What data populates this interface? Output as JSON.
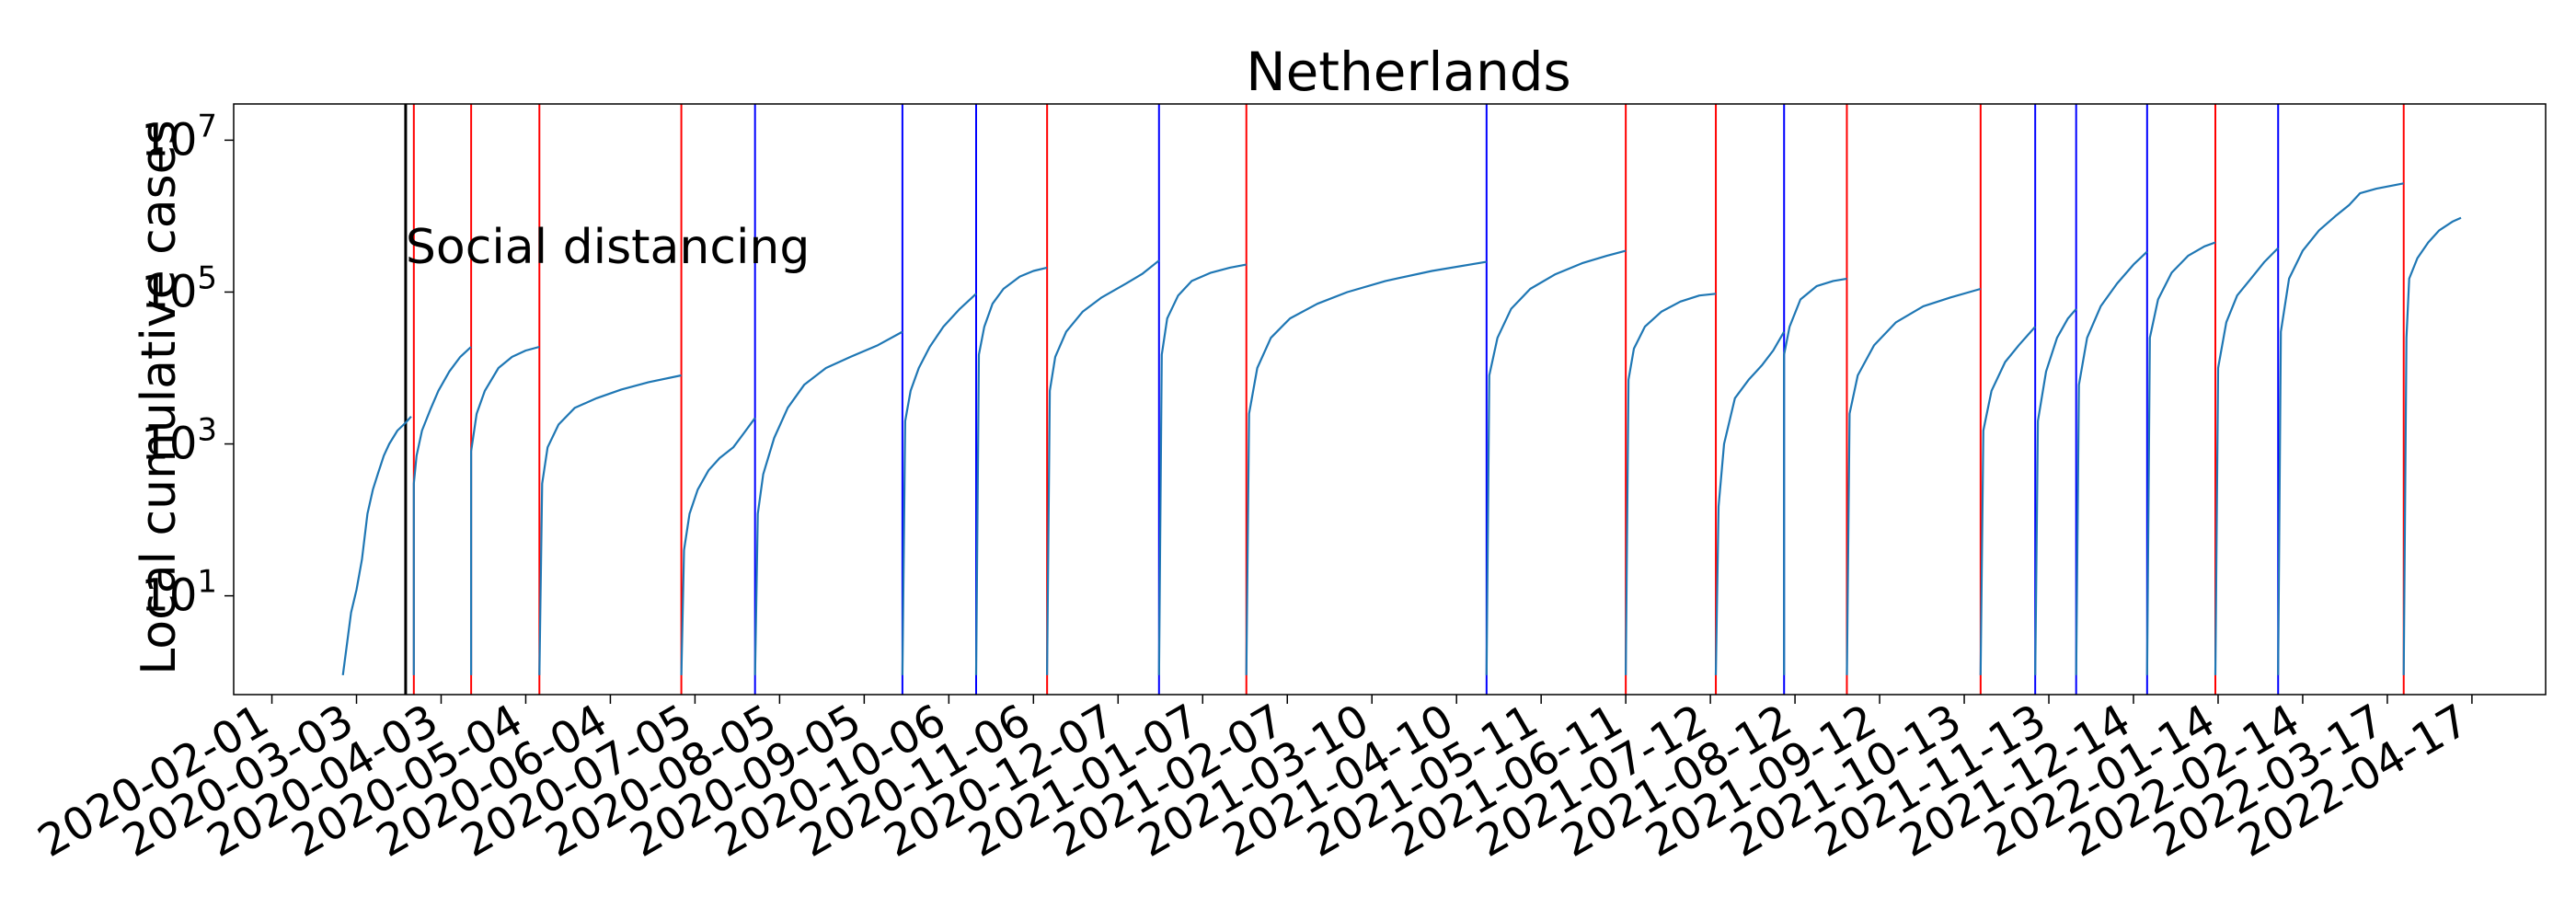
{
  "chart_data": {
    "type": "line",
    "title": "Netherlands",
    "ylabel": "Local cumulative cases",
    "xlabel": "",
    "yscale": "log",
    "ylim": [
      0.5,
      30000000
    ],
    "xlim": [
      "2020-01-18",
      "2022-05-14"
    ],
    "grid": false,
    "y_ticks": [
      {
        "value": 10,
        "base": "10",
        "exp": "1"
      },
      {
        "value": 1000,
        "base": "10",
        "exp": "3"
      },
      {
        "value": 100000,
        "base": "10",
        "exp": "5"
      },
      {
        "value": 10000000,
        "base": "10",
        "exp": "7"
      }
    ],
    "x_ticks": [
      "2020-02-01",
      "2020-03-03",
      "2020-04-03",
      "2020-05-04",
      "2020-06-04",
      "2020-07-05",
      "2020-08-05",
      "2020-09-05",
      "2020-10-06",
      "2020-11-06",
      "2020-12-07",
      "2021-01-07",
      "2021-02-07",
      "2021-03-10",
      "2021-04-10",
      "2021-05-11",
      "2021-06-11",
      "2021-07-12",
      "2021-08-12",
      "2021-09-12",
      "2021-10-13",
      "2021-11-13",
      "2021-12-14",
      "2022-01-14",
      "2022-02-14",
      "2022-03-17",
      "2022-04-17"
    ],
    "annotations": [
      {
        "text": "Social distancing",
        "date": "2020-03-21",
        "value": 400000
      }
    ],
    "marker_lines": [
      {
        "date": "2020-03-21",
        "color": "#000000"
      },
      {
        "date": "2020-03-24",
        "color": "#ff0000"
      },
      {
        "date": "2020-04-14",
        "color": "#ff0000"
      },
      {
        "date": "2020-05-09",
        "color": "#ff0000"
      },
      {
        "date": "2020-06-30",
        "color": "#ff0000"
      },
      {
        "date": "2020-07-27",
        "color": "#0000ff"
      },
      {
        "date": "2020-09-19",
        "color": "#0000ff"
      },
      {
        "date": "2020-10-16",
        "color": "#0000ff"
      },
      {
        "date": "2020-11-11",
        "color": "#ff0000"
      },
      {
        "date": "2020-12-22",
        "color": "#0000ff"
      },
      {
        "date": "2021-01-23",
        "color": "#ff0000"
      },
      {
        "date": "2021-04-21",
        "color": "#0000ff"
      },
      {
        "date": "2021-06-11",
        "color": "#ff0000"
      },
      {
        "date": "2021-07-14",
        "color": "#ff0000"
      },
      {
        "date": "2021-08-08",
        "color": "#0000ff"
      },
      {
        "date": "2021-08-31",
        "color": "#ff0000"
      },
      {
        "date": "2021-10-19",
        "color": "#ff0000"
      },
      {
        "date": "2021-11-08",
        "color": "#0000ff"
      },
      {
        "date": "2021-11-23",
        "color": "#0000ff"
      },
      {
        "date": "2021-12-19",
        "color": "#0000ff"
      },
      {
        "date": "2022-01-13",
        "color": "#ff0000"
      },
      {
        "date": "2022-02-05",
        "color": "#0000ff"
      },
      {
        "date": "2022-03-23",
        "color": "#ff0000"
      }
    ],
    "series": [
      {
        "color": "#1f77b4",
        "segments": [
          [
            [
              "2020-02-27",
              0.9
            ],
            [
              "2020-03-01",
              6
            ],
            [
              "2020-03-03",
              12
            ],
            [
              "2020-03-05",
              30
            ],
            [
              "2020-03-07",
              120
            ],
            [
              "2020-03-09",
              250
            ],
            [
              "2020-03-11",
              420
            ],
            [
              "2020-03-13",
              700
            ],
            [
              "2020-03-15",
              1000
            ],
            [
              "2020-03-18",
              1500
            ],
            [
              "2020-03-21",
              1900
            ],
            [
              "2020-03-23",
              2300
            ]
          ],
          [
            [
              "2020-03-24",
              0.9
            ],
            [
              "2020-03-24",
              300
            ],
            [
              "2020-03-25",
              700
            ],
            [
              "2020-03-27",
              1500
            ],
            [
              "2020-03-30",
              2800
            ],
            [
              "2020-04-02",
              5000
            ],
            [
              "2020-04-06",
              9000
            ],
            [
              "2020-04-10",
              14000
            ],
            [
              "2020-04-14",
              19000
            ]
          ],
          [
            [
              "2020-04-14",
              0.9
            ],
            [
              "2020-04-14",
              800
            ],
            [
              "2020-04-16",
              2500
            ],
            [
              "2020-04-19",
              5000
            ],
            [
              "2020-04-24",
              10000
            ],
            [
              "2020-04-29",
              14000
            ],
            [
              "2020-05-04",
              17000
            ],
            [
              "2020-05-09",
              19000
            ]
          ],
          [
            [
              "2020-05-09",
              0.9
            ],
            [
              "2020-05-10",
              300
            ],
            [
              "2020-05-12",
              900
            ],
            [
              "2020-05-16",
              1800
            ],
            [
              "2020-05-22",
              3000
            ],
            [
              "2020-05-30",
              4000
            ],
            [
              "2020-06-08",
              5200
            ],
            [
              "2020-06-18",
              6500
            ],
            [
              "2020-06-30",
              8000
            ]
          ],
          [
            [
              "2020-06-30",
              0.9
            ],
            [
              "2020-07-01",
              40
            ],
            [
              "2020-07-03",
              120
            ],
            [
              "2020-07-06",
              250
            ],
            [
              "2020-07-10",
              450
            ],
            [
              "2020-07-14",
              650
            ],
            [
              "2020-07-19",
              900
            ],
            [
              "2020-07-23",
              1400
            ],
            [
              "2020-07-27",
              2200
            ]
          ],
          [
            [
              "2020-07-27",
              0.9
            ],
            [
              "2020-07-28",
              120
            ],
            [
              "2020-07-30",
              400
            ],
            [
              "2020-08-03",
              1200
            ],
            [
              "2020-08-08",
              3000
            ],
            [
              "2020-08-14",
              6000
            ],
            [
              "2020-08-22",
              10000
            ],
            [
              "2020-08-31",
              14000
            ],
            [
              "2020-09-10",
              20000
            ],
            [
              "2020-09-19",
              30000
            ]
          ],
          [
            [
              "2020-09-19",
              0.9
            ],
            [
              "2020-09-20",
              2000
            ],
            [
              "2020-09-22",
              5000
            ],
            [
              "2020-09-25",
              10000
            ],
            [
              "2020-09-29",
              19000
            ],
            [
              "2020-10-04",
              35000
            ],
            [
              "2020-10-10",
              60000
            ],
            [
              "2020-10-16",
              95000
            ]
          ],
          [
            [
              "2020-10-16",
              0.9
            ],
            [
              "2020-10-17",
              15000
            ],
            [
              "2020-10-19",
              35000
            ],
            [
              "2020-10-22",
              70000
            ],
            [
              "2020-10-26",
              110000
            ],
            [
              "2020-11-01",
              160000
            ],
            [
              "2020-11-06",
              190000
            ],
            [
              "2020-11-11",
              210000
            ]
          ],
          [
            [
              "2020-11-11",
              0.9
            ],
            [
              "2020-11-12",
              5000
            ],
            [
              "2020-11-14",
              14000
            ],
            [
              "2020-11-18",
              30000
            ],
            [
              "2020-11-24",
              55000
            ],
            [
              "2020-12-01",
              85000
            ],
            [
              "2020-12-10",
              130000
            ],
            [
              "2020-12-16",
              175000
            ],
            [
              "2020-12-22",
              260000
            ]
          ],
          [
            [
              "2020-12-22",
              0.9
            ],
            [
              "2020-12-23",
              15000
            ],
            [
              "2020-12-25",
              45000
            ],
            [
              "2020-12-29",
              90000
            ],
            [
              "2021-01-03",
              140000
            ],
            [
              "2021-01-10",
              180000
            ],
            [
              "2021-01-17",
              210000
            ],
            [
              "2021-01-23",
              230000
            ]
          ],
          [
            [
              "2021-01-23",
              0.9
            ],
            [
              "2021-01-24",
              2500
            ],
            [
              "2021-01-27",
              10000
            ],
            [
              "2021-02-01",
              25000
            ],
            [
              "2021-02-08",
              45000
            ],
            [
              "2021-02-18",
              70000
            ],
            [
              "2021-03-01",
              100000
            ],
            [
              "2021-03-15",
              140000
            ],
            [
              "2021-04-01",
              190000
            ],
            [
              "2021-04-21",
              250000
            ]
          ],
          [
            [
              "2021-04-21",
              0.9
            ],
            [
              "2021-04-22",
              8000
            ],
            [
              "2021-04-25",
              25000
            ],
            [
              "2021-04-30",
              60000
            ],
            [
              "2021-05-07",
              110000
            ],
            [
              "2021-05-16",
              170000
            ],
            [
              "2021-05-26",
              240000
            ],
            [
              "2021-06-04",
              300000
            ],
            [
              "2021-06-11",
              350000
            ]
          ],
          [
            [
              "2021-06-11",
              0.9
            ],
            [
              "2021-06-12",
              7000
            ],
            [
              "2021-06-14",
              18000
            ],
            [
              "2021-06-18",
              35000
            ],
            [
              "2021-06-24",
              55000
            ],
            [
              "2021-07-01",
              75000
            ],
            [
              "2021-07-08",
              90000
            ],
            [
              "2021-07-14",
              95000
            ]
          ],
          [
            [
              "2021-07-14",
              0.9
            ],
            [
              "2021-07-15",
              150
            ],
            [
              "2021-07-17",
              1000
            ],
            [
              "2021-07-21",
              4000
            ],
            [
              "2021-07-26",
              7000
            ],
            [
              "2021-07-31",
              11000
            ],
            [
              "2021-08-04",
              17000
            ],
            [
              "2021-08-08",
              30000
            ]
          ],
          [
            [
              "2021-08-08",
              0.9
            ],
            [
              "2021-08-08",
              15000
            ],
            [
              "2021-08-10",
              35000
            ],
            [
              "2021-08-14",
              80000
            ],
            [
              "2021-08-20",
              120000
            ],
            [
              "2021-08-26",
              140000
            ],
            [
              "2021-08-31",
              150000
            ]
          ],
          [
            [
              "2021-08-31",
              0.9
            ],
            [
              "2021-09-01",
              2500
            ],
            [
              "2021-09-04",
              8000
            ],
            [
              "2021-09-10",
              20000
            ],
            [
              "2021-09-18",
              40000
            ],
            [
              "2021-09-28",
              65000
            ],
            [
              "2021-10-08",
              85000
            ],
            [
              "2021-10-19",
              110000
            ]
          ],
          [
            [
              "2021-10-19",
              0.9
            ],
            [
              "2021-10-20",
              1500
            ],
            [
              "2021-10-23",
              5000
            ],
            [
              "2021-10-28",
              12000
            ],
            [
              "2021-11-02",
              20000
            ],
            [
              "2021-11-08",
              35000
            ]
          ],
          [
            [
              "2021-11-08",
              0.9
            ],
            [
              "2021-11-09",
              2000
            ],
            [
              "2021-11-12",
              9000
            ],
            [
              "2021-11-16",
              25000
            ],
            [
              "2021-11-20",
              45000
            ],
            [
              "2021-11-23",
              60000
            ]
          ],
          [
            [
              "2021-11-23",
              0.9
            ],
            [
              "2021-11-24",
              6000
            ],
            [
              "2021-11-27",
              25000
            ],
            [
              "2021-12-02",
              65000
            ],
            [
              "2021-12-08",
              130000
            ],
            [
              "2021-12-14",
              230000
            ],
            [
              "2021-12-19",
              340000
            ]
          ],
          [
            [
              "2021-12-19",
              0.9
            ],
            [
              "2021-12-20",
              25000
            ],
            [
              "2021-12-23",
              80000
            ],
            [
              "2021-12-28",
              180000
            ],
            [
              "2022-01-03",
              300000
            ],
            [
              "2022-01-09",
              400000
            ],
            [
              "2022-01-13",
              450000
            ]
          ],
          [
            [
              "2022-01-13",
              0.9
            ],
            [
              "2022-01-14",
              10000
            ],
            [
              "2022-01-17",
              40000
            ],
            [
              "2022-01-21",
              90000
            ],
            [
              "2022-01-26",
              150000
            ],
            [
              "2022-01-31",
              250000
            ],
            [
              "2022-02-05",
              380000
            ]
          ],
          [
            [
              "2022-02-05",
              0.9
            ],
            [
              "2022-02-06",
              30000
            ],
            [
              "2022-02-09",
              150000
            ],
            [
              "2022-02-14",
              350000
            ],
            [
              "2022-02-20",
              650000
            ],
            [
              "2022-02-26",
              1000000
            ],
            [
              "2022-03-03",
              1400000
            ],
            [
              "2022-03-07",
              2000000
            ],
            [
              "2022-03-13",
              2300000
            ],
            [
              "2022-03-23",
              2700000
            ]
          ],
          [
            [
              "2022-03-23",
              0.9
            ],
            [
              "2022-03-24",
              25000
            ],
            [
              "2022-03-25",
              150000
            ],
            [
              "2022-03-28",
              280000
            ],
            [
              "2022-04-01",
              450000
            ],
            [
              "2022-04-05",
              650000
            ],
            [
              "2022-04-10",
              850000
            ],
            [
              "2022-04-13",
              950000
            ]
          ]
        ]
      }
    ]
  }
}
